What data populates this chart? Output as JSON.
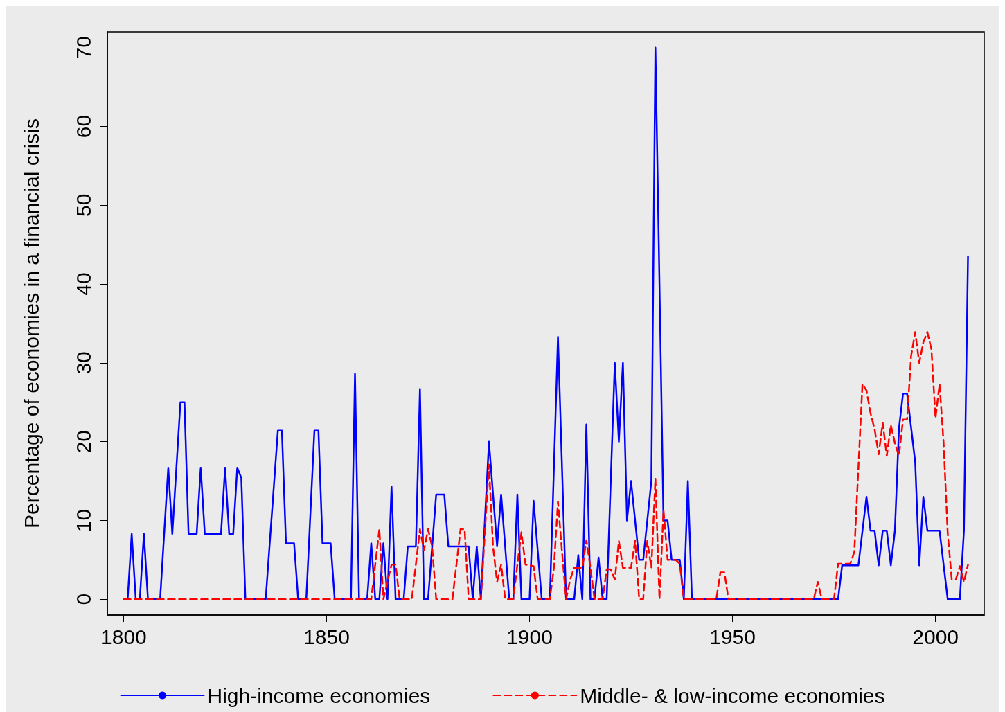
{
  "chart_data": {
    "type": "line",
    "ylabel": "Percentage of economies in a financial crisis",
    "xlim": [
      1796,
      2012
    ],
    "xticks": [
      1800,
      1850,
      1900,
      1950,
      2000
    ],
    "ylim": [
      -2,
      72
    ],
    "yticks": [
      0,
      10,
      20,
      30,
      40,
      50,
      60,
      70
    ],
    "grid": false,
    "legend": "bottom",
    "marker": "none",
    "series": [
      {
        "name": "High-income economies",
        "color": "#0000ff",
        "line_style": "solid",
        "x": [
          1800,
          1801,
          1802,
          1803,
          1804,
          1805,
          1806,
          1809,
          1811,
          1812,
          1814,
          1815,
          1816,
          1818,
          1819,
          1820,
          1824,
          1825,
          1826,
          1827,
          1828,
          1829,
          1830,
          1835,
          1838,
          1839,
          1840,
          1842,
          1843,
          1845,
          1847,
          1848,
          1849,
          1851,
          1852,
          1856,
          1857,
          1858,
          1860,
          1861,
          1862,
          1863,
          1864,
          1865,
          1866,
          1867,
          1869,
          1870,
          1872,
          1873,
          1874,
          1875,
          1877,
          1879,
          1880,
          1885,
          1886,
          1887,
          1888,
          1890,
          1892,
          1893,
          1895,
          1896,
          1897,
          1898,
          1900,
          1901,
          1903,
          1905,
          1907,
          1909,
          1911,
          1912,
          1913,
          1914,
          1915,
          1916,
          1917,
          1918,
          1919,
          1921,
          1922,
          1923,
          1924,
          1925,
          1927,
          1928,
          1930,
          1931,
          1933,
          1934,
          1935,
          1937,
          1938,
          1939,
          1940,
          1976,
          1977,
          1981,
          1983,
          1984,
          1985,
          1986,
          1987,
          1988,
          1989,
          1990,
          1991,
          1992,
          1993,
          1995,
          1996,
          1997,
          1998,
          2001,
          2003,
          2006,
          2007,
          2008
        ],
        "values": [
          0,
          0,
          8.3,
          0,
          0,
          8.3,
          0,
          0,
          16.7,
          8.3,
          25,
          25,
          8.3,
          8.3,
          16.7,
          8.3,
          8.3,
          16.7,
          8.3,
          8.3,
          16.7,
          15.4,
          0,
          0,
          21.4,
          21.4,
          7.1,
          7.1,
          0,
          0,
          21.4,
          21.4,
          7.1,
          7.1,
          0,
          0,
          28.6,
          0,
          0,
          7.1,
          0,
          0,
          7.1,
          0,
          14.3,
          0,
          0,
          6.7,
          6.7,
          26.7,
          0,
          0,
          13.3,
          13.3,
          6.7,
          6.7,
          0,
          6.7,
          0,
          20,
          6.7,
          13.3,
          0,
          0,
          13.3,
          0,
          0,
          12.5,
          0,
          0,
          33.3,
          0,
          0,
          5.6,
          0,
          22.2,
          0,
          0,
          5.3,
          0,
          0,
          30,
          20,
          30,
          10,
          15,
          5,
          5,
          15,
          70,
          10,
          10,
          5,
          5,
          0,
          15,
          0,
          0,
          4.3,
          4.3,
          13,
          8.7,
          8.7,
          4.3,
          8.7,
          8.7,
          4.3,
          8.7,
          21.7,
          26.1,
          26.1,
          17.4,
          4.3,
          13,
          8.7,
          8.7,
          0,
          0,
          8.7,
          43.5
        ]
      },
      {
        "name": "Middle- & low-income economies",
        "color": "#ff0000",
        "line_style": "dashed",
        "x": [
          1800,
          1861,
          1863,
          1864,
          1866,
          1867,
          1868,
          1871,
          1873,
          1874,
          1875,
          1876,
          1877,
          1881,
          1883,
          1884,
          1885,
          1888,
          1890,
          1891,
          1892,
          1893,
          1894,
          1896,
          1897,
          1898,
          1899,
          1901,
          1902,
          1905,
          1906,
          1907,
          1908,
          1909,
          1910,
          1911,
          1913,
          1914,
          1915,
          1916,
          1918,
          1919,
          1920,
          1921,
          1922,
          1923,
          1925,
          1926,
          1927,
          1928,
          1929,
          1930,
          1931,
          1932,
          1933,
          1934,
          1936,
          1937,
          1938,
          1946,
          1947,
          1948,
          1949,
          1970,
          1971,
          1972,
          1975,
          1976,
          1979,
          1980,
          1982,
          1983,
          1984,
          1985,
          1986,
          1987,
          1988,
          1989,
          1990,
          1991,
          1992,
          1993,
          1994,
          1995,
          1996,
          1997,
          1998,
          1999,
          2000,
          2001,
          2002,
          2003,
          2004,
          2005,
          2006,
          2007,
          2008
        ],
        "values": [
          0,
          0,
          8.9,
          0,
          4.4,
          4.4,
          0,
          0,
          8.9,
          6.2,
          8.9,
          6.7,
          0,
          0,
          8.9,
          8.9,
          0,
          0,
          17.1,
          6.7,
          2.2,
          4.4,
          0,
          0,
          4.4,
          8.5,
          4.4,
          4.2,
          0,
          0,
          4,
          12.4,
          6,
          0,
          2.5,
          4,
          4,
          7.5,
          4,
          0,
          0,
          3.8,
          3.8,
          2.5,
          7.4,
          4,
          4,
          7.4,
          0,
          0,
          7.4,
          4,
          15.3,
          0,
          11.3,
          5,
          5,
          4.5,
          0,
          0,
          3.4,
          3.4,
          0,
          0,
          2.2,
          0,
          0,
          4.5,
          4.5,
          6,
          27.3,
          26.5,
          23.6,
          21.6,
          18.4,
          22.4,
          18.2,
          22.1,
          19.8,
          18.2,
          22.8,
          22.8,
          30.9,
          33.9,
          30,
          32.6,
          33.9,
          31.7,
          23,
          27.3,
          19.8,
          8.4,
          2.5,
          2.5,
          4.2,
          2.2,
          4.4
        ]
      }
    ]
  }
}
